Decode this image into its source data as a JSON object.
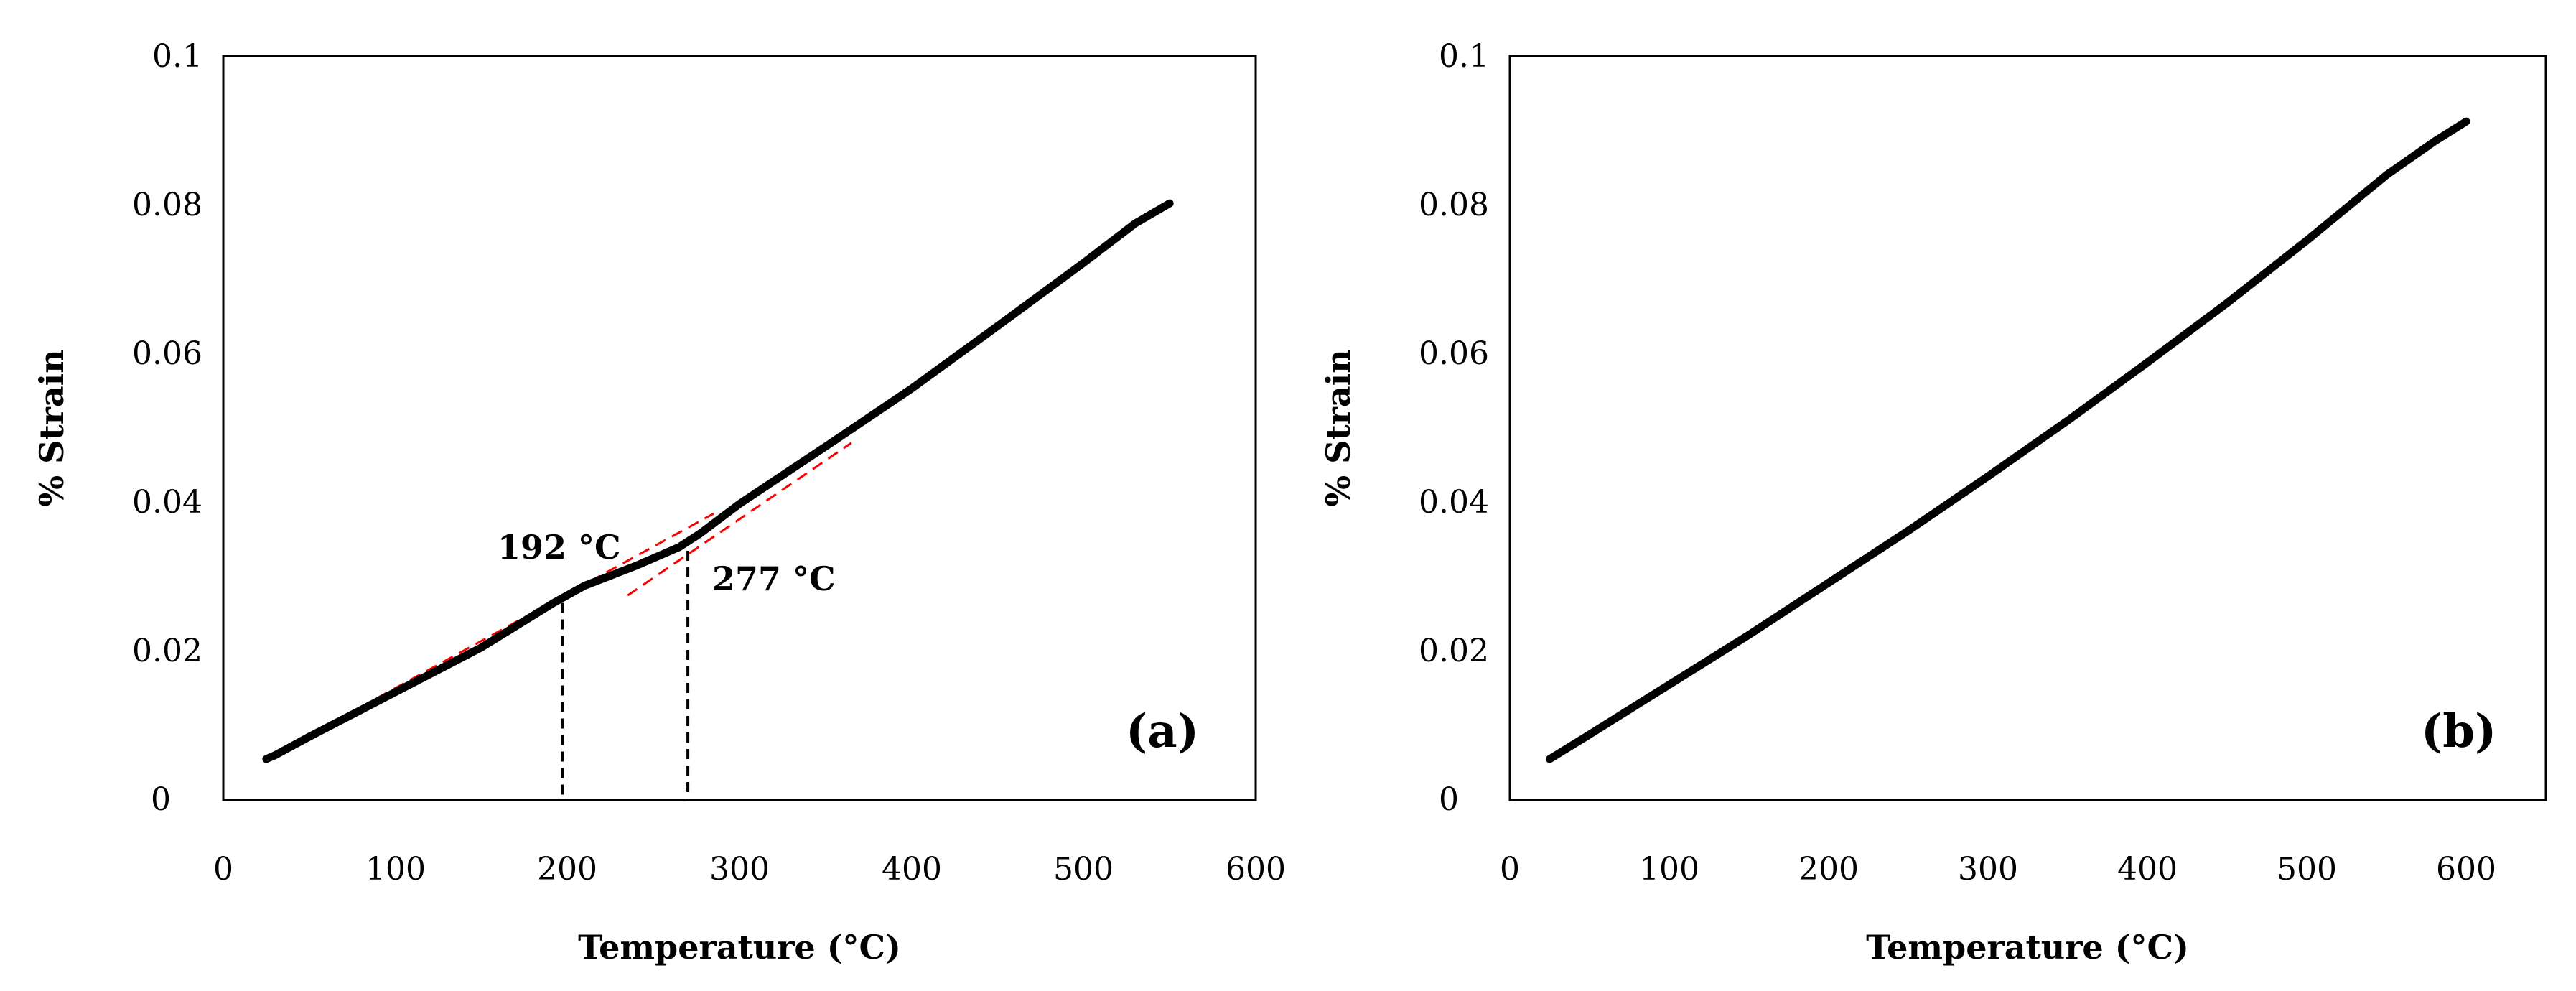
{
  "chart_data": [
    {
      "type": "line",
      "panel": "(a)",
      "xlabel": "Temperature (°C)",
      "ylabel": "% Strain",
      "xlim": [
        0,
        600
      ],
      "ylim": [
        0,
        0.1
      ],
      "xticks": [
        "0",
        "100",
        "200",
        "300",
        "400",
        "500",
        "600"
      ],
      "yticks": [
        "0",
        "0.02",
        "0.04",
        "0.06",
        "0.08",
        "0.1"
      ],
      "series": [
        {
          "name": "strain",
          "color": "#000000",
          "points": [
            [
              25,
              0.0055
            ],
            [
              30,
              0.006
            ],
            [
              50,
              0.0085
            ],
            [
              100,
              0.0145
            ],
            [
              150,
              0.0205
            ],
            [
              192,
              0.0265
            ],
            [
              210,
              0.0288
            ],
            [
              240,
              0.0315
            ],
            [
              265,
              0.034
            ],
            [
              277,
              0.0358
            ],
            [
              300,
              0.0398
            ],
            [
              350,
              0.0475
            ],
            [
              400,
              0.0553
            ],
            [
              450,
              0.0637
            ],
            [
              500,
              0.0722
            ],
            [
              530,
              0.0775
            ],
            [
              550,
              0.0802
            ]
          ]
        }
      ],
      "tangent_lines": [
        {
          "color": "#ff0000",
          "points": [
            [
              80,
              0.0125
            ],
            [
              285,
              0.0385
            ]
          ]
        },
        {
          "color": "#ff0000",
          "points": [
            [
              235,
              0.0275
            ],
            [
              365,
              0.048
            ]
          ]
        }
      ],
      "markers": [
        {
          "x": 197,
          "y": 0.0265,
          "color": "#000000"
        },
        {
          "x": 270,
          "y": 0.0335,
          "color": "#000000"
        }
      ],
      "annotations": [
        "192 °C",
        "277 °C"
      ]
    },
    {
      "type": "line",
      "panel": "(b)",
      "xlabel": "Temperature (°C)",
      "ylabel": "% Strain",
      "xlim": [
        0,
        650
      ],
      "ylim": [
        0,
        0.1
      ],
      "xticks": [
        "0",
        "100",
        "200",
        "300",
        "400",
        "500",
        "600"
      ],
      "yticks": [
        "0",
        "0.02",
        "0.04",
        "0.06",
        "0.08",
        "0.1"
      ],
      "series": [
        {
          "name": "strain",
          "color": "#000000",
          "points": [
            [
              25,
              0.0055
            ],
            [
              50,
              0.0088
            ],
            [
              100,
              0.0155
            ],
            [
              150,
              0.0222
            ],
            [
              200,
              0.0292
            ],
            [
              250,
              0.0362
            ],
            [
              300,
              0.0435
            ],
            [
              350,
              0.051
            ],
            [
              400,
              0.0588
            ],
            [
              450,
              0.0668
            ],
            [
              500,
              0.0752
            ],
            [
              550,
              0.084
            ],
            [
              580,
              0.0885
            ],
            [
              600,
              0.0912
            ]
          ]
        }
      ]
    }
  ]
}
